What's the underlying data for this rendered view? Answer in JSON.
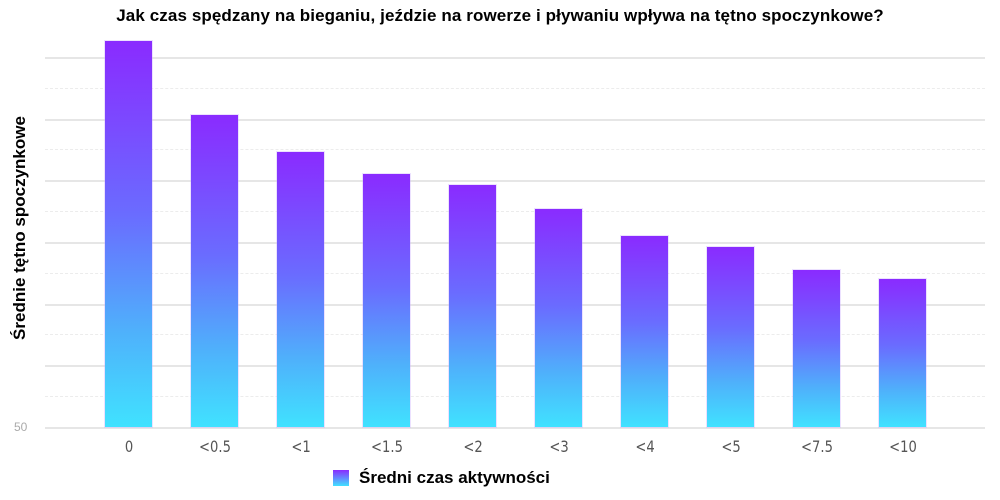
{
  "title": "Jak czas spędzany na bieganiu, jeździe na rowerze i pływaniu wpływa na tętno spoczynkowe?",
  "y_axis": {
    "label": "Średnie tętno spoczynkowe",
    "tick_label": "50"
  },
  "legend": {
    "label": "Średni czas aktywności"
  },
  "colors": {
    "gradient_top": "#8a2bff",
    "gradient_bottom": "#40e2ff",
    "grid": "#e6e6e6"
  },
  "chart_data": {
    "type": "bar",
    "title": "Jak czas spędzany na bieganiu, jeździe na rowerze i pływaniu wpływa na tętno spoczynkowe?",
    "xlabel": "",
    "ylabel": "Średnie tętno spoczynkowe",
    "categories": [
      "0",
      "<0.5",
      "<1",
      "<1.5",
      "<2",
      "<3",
      "<4",
      "<5",
      "<7.5",
      "<10"
    ],
    "series": [
      {
        "name": "Średni czas aktywności",
        "values": [
          81.3,
          75.3,
          72.3,
          70.5,
          69.6,
          67.7,
          65.5,
          64.6,
          62.7,
          62.0
        ]
      }
    ],
    "ylim": [
      50,
      82
    ],
    "y_ticks_labeled": [
      50
    ],
    "grid": true,
    "legend_position": "bottom"
  }
}
